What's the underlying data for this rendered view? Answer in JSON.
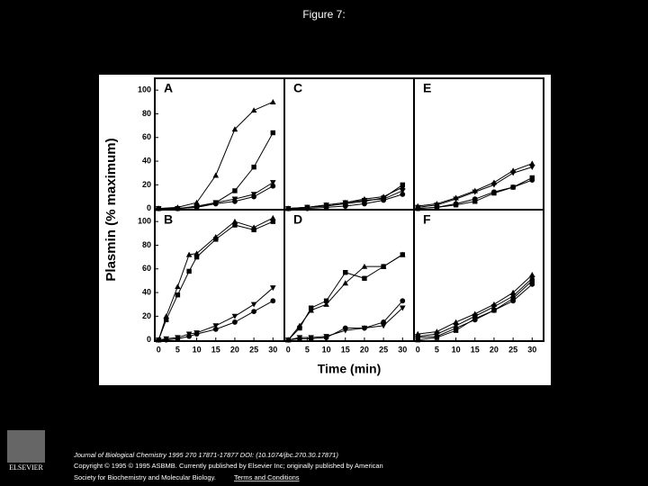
{
  "header": {
    "title": "Figure 7:"
  },
  "figure": {
    "ylabel": "Plasmin (% maximum)",
    "xlabel": "Time (min)"
  },
  "chart_data": [
    {
      "type": "line",
      "label": "A",
      "xlim": [
        -1,
        33
      ],
      "ylim": [
        -1,
        110
      ],
      "yticks": [
        0,
        20,
        40,
        60,
        80,
        100
      ],
      "x": [
        0,
        5,
        10,
        15,
        20,
        25,
        30
      ],
      "series": [
        {
          "marker": "triangle",
          "color": "#000000",
          "values": [
            0,
            1,
            5,
            28,
            67,
            83,
            90
          ]
        },
        {
          "marker": "square",
          "color": "#000000",
          "values": [
            0,
            0,
            2,
            5,
            15,
            35,
            64
          ]
        },
        {
          "marker": "triangle-down",
          "color": "#000000",
          "values": [
            0,
            0,
            1,
            5,
            8,
            12,
            22
          ]
        },
        {
          "marker": "circle",
          "color": "#000000",
          "values": [
            0,
            0,
            1,
            4,
            6,
            10,
            19
          ]
        }
      ]
    },
    {
      "type": "line",
      "label": "B",
      "xlim": [
        -1,
        33
      ],
      "ylim": [
        -1,
        110
      ],
      "yticks": [
        0,
        20,
        40,
        60,
        80,
        100
      ],
      "xticks": [
        0,
        5,
        10,
        15,
        20,
        25,
        30
      ],
      "x": [
        0,
        2,
        5,
        8,
        10,
        15,
        20,
        25,
        30
      ],
      "series": [
        {
          "marker": "triangle",
          "color": "#000000",
          "values": [
            0,
            20,
            45,
            72,
            73,
            87,
            100,
            95,
            103
          ]
        },
        {
          "marker": "square",
          "color": "#000000",
          "values": [
            0,
            17,
            38,
            58,
            70,
            85,
            97,
            93,
            100
          ]
        },
        {
          "marker": "triangle-down",
          "color": "#000000",
          "values": [
            0,
            1,
            2,
            5,
            6,
            12,
            20,
            30,
            44
          ]
        },
        {
          "marker": "circle",
          "color": "#000000",
          "values": [
            0,
            0,
            1,
            3,
            5,
            9,
            15,
            24,
            33
          ]
        }
      ]
    },
    {
      "type": "line",
      "label": "C",
      "xlim": [
        -1,
        33
      ],
      "ylim": [
        -1,
        110
      ],
      "x": [
        0,
        5,
        10,
        15,
        20,
        25,
        30
      ],
      "series": [
        {
          "marker": "triangle",
          "color": "#000000",
          "values": [
            0,
            1,
            3,
            5,
            8,
            10,
            18
          ]
        },
        {
          "marker": "square",
          "color": "#000000",
          "values": [
            0,
            1,
            2,
            4,
            6,
            9,
            20
          ]
        },
        {
          "marker": "triangle-down",
          "color": "#000000",
          "values": [
            0,
            1,
            3,
            5,
            7,
            8,
            15
          ]
        },
        {
          "marker": "circle",
          "color": "#000000",
          "values": [
            0,
            0,
            1,
            2,
            4,
            7,
            12
          ]
        }
      ]
    },
    {
      "type": "line",
      "label": "D",
      "xlim": [
        -1,
        33
      ],
      "ylim": [
        -1,
        110
      ],
      "xticks": [
        0,
        5,
        10,
        15,
        20,
        25,
        30
      ],
      "x": [
        0,
        3,
        6,
        10,
        15,
        20,
        25,
        30
      ],
      "series": [
        {
          "marker": "triangle",
          "color": "#000000",
          "values": [
            0,
            12,
            25,
            30,
            48,
            62,
            62,
            72
          ]
        },
        {
          "marker": "square",
          "color": "#000000",
          "values": [
            0,
            10,
            27,
            33,
            57,
            52,
            62,
            72
          ]
        },
        {
          "marker": "triangle-down",
          "color": "#000000",
          "values": [
            0,
            2,
            2,
            3,
            8,
            10,
            12,
            27
          ]
        },
        {
          "marker": "circle",
          "color": "#000000",
          "values": [
            0,
            1,
            1,
            2,
            10,
            10,
            15,
            33
          ]
        }
      ]
    },
    {
      "type": "line",
      "label": "E",
      "xlim": [
        -1,
        33
      ],
      "ylim": [
        -1,
        110
      ],
      "x": [
        0,
        5,
        10,
        15,
        20,
        25,
        30
      ],
      "series": [
        {
          "marker": "triangle",
          "color": "#000000",
          "values": [
            2,
            4,
            9,
            15,
            22,
            32,
            38
          ]
        },
        {
          "marker": "square",
          "color": "#000000",
          "values": [
            0,
            1,
            3,
            6,
            13,
            18,
            26
          ]
        },
        {
          "marker": "triangle-down",
          "color": "#000000",
          "values": [
            1,
            3,
            8,
            14,
            20,
            30,
            35
          ]
        },
        {
          "marker": "circle",
          "color": "#000000",
          "values": [
            0,
            1,
            4,
            8,
            14,
            18,
            24
          ]
        }
      ]
    },
    {
      "type": "line",
      "label": "F",
      "xlim": [
        -1,
        33
      ],
      "ylim": [
        -1,
        110
      ],
      "xticks": [
        0,
        5,
        10,
        15,
        20,
        25,
        30
      ],
      "x": [
        0,
        5,
        10,
        15,
        20,
        25,
        30
      ],
      "series": [
        {
          "marker": "triangle",
          "color": "#000000",
          "values": [
            5,
            7,
            15,
            22,
            30,
            40,
            55
          ]
        },
        {
          "marker": "square",
          "color": "#000000",
          "values": [
            0,
            2,
            8,
            18,
            25,
            35,
            50
          ]
        },
        {
          "marker": "triangle-down",
          "color": "#000000",
          "values": [
            3,
            5,
            12,
            20,
            28,
            37,
            52
          ]
        },
        {
          "marker": "circle",
          "color": "#000000",
          "values": [
            2,
            3,
            10,
            17,
            25,
            33,
            47
          ]
        }
      ]
    }
  ],
  "footer": {
    "logo": "ELSEVIER",
    "line1": "Journal of Biological Chemistry 1995 270 17871-17877 DOI: (10.1074/jbc.270.30.17871)",
    "line2": "Copyright © 1995 © 1995 ASBMB. Currently published by Elsevier Inc; originally published by American",
    "line3": "Society for Biochemistry and Molecular Biology.",
    "link": "Terms and Conditions"
  }
}
